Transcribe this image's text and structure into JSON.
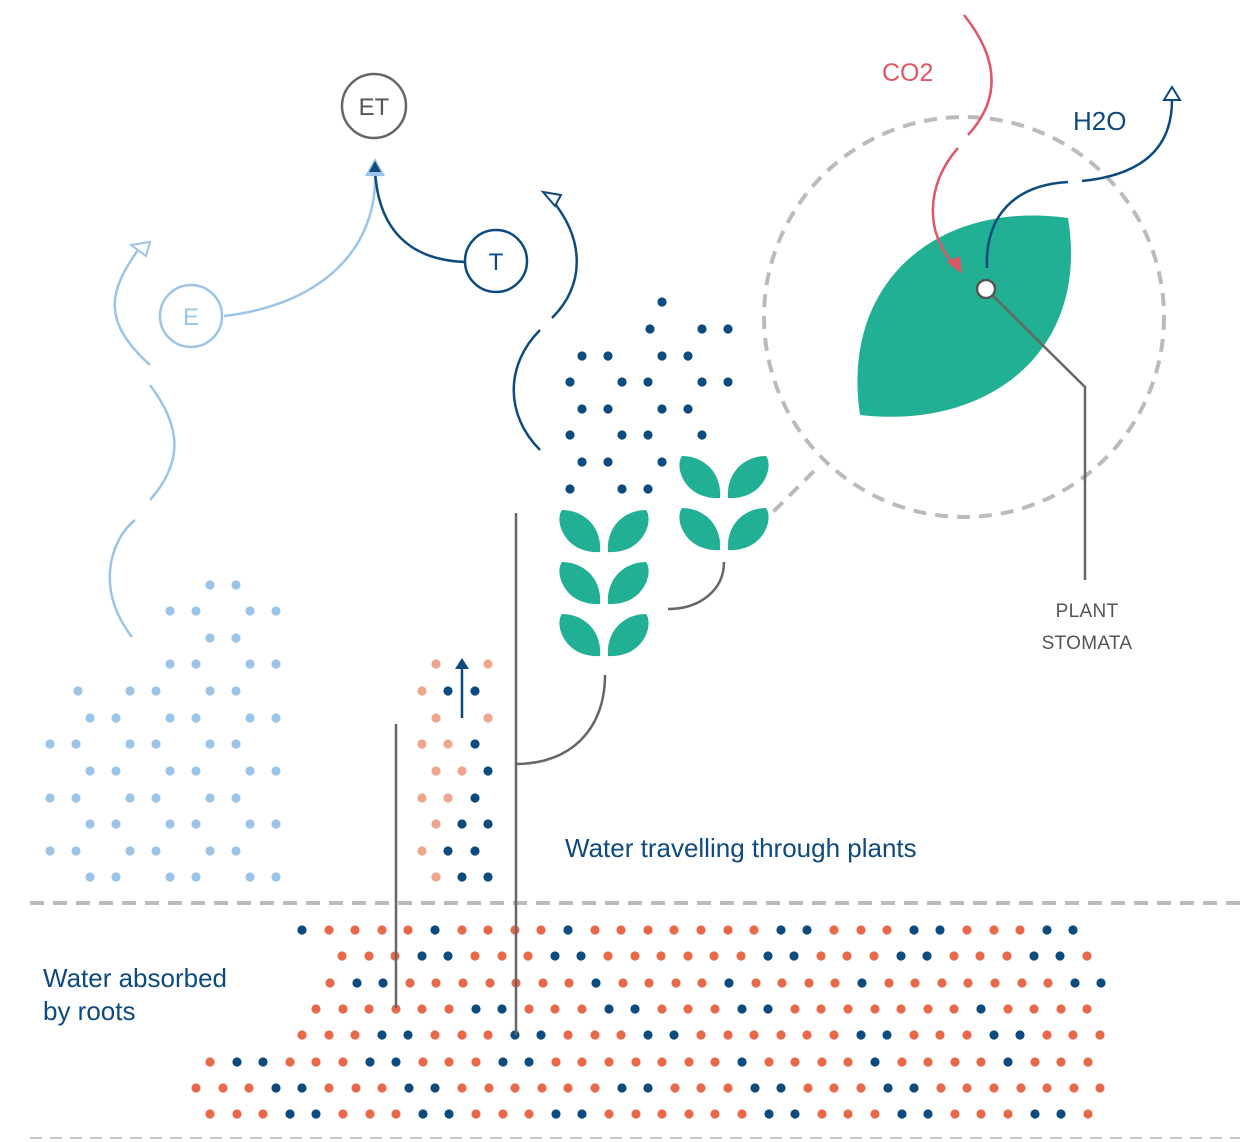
{
  "nodes": {
    "et": "ET",
    "t": "T",
    "e": "E"
  },
  "labels": {
    "co2": "CO2",
    "h2o": "H2O",
    "stomata_line1": "PLANT",
    "stomata_line2": "STOMATA",
    "plants": "Water travelling through plants",
    "roots_line1": "Water absorbed",
    "roots_line2": "by roots"
  },
  "colors": {
    "dark_blue": "#0d4a7e",
    "light_blue": "#9cc4e6",
    "green": "#22b095",
    "orange": "#e8694a",
    "salmon": "#f0a58f",
    "red": "#e05563",
    "grey": "#666666",
    "dash_grey": "#bbbbbb"
  },
  "icons": [
    "leaf-icon",
    "stomata-pore-icon",
    "arrow-up-icon"
  ]
}
